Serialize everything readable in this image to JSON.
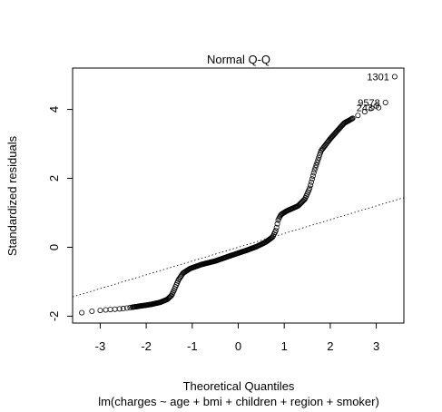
{
  "chart_data": {
    "type": "scatter",
    "title": "Normal Q-Q",
    "xlabel": "Theoretical Quantiles",
    "subtitle": "lm(charges ~ age + bmi + children + region + smoker)",
    "ylabel": "Standardized residuals",
    "xlim": [
      -3.6,
      3.6
    ],
    "ylim": [
      -2.2,
      5.2
    ],
    "xticks": [
      -3,
      -2,
      -1,
      0,
      1,
      2,
      3
    ],
    "xtick_labels": [
      "-3",
      "-2",
      "-1",
      "0",
      "1",
      "2",
      "3"
    ],
    "yticks": [
      -2,
      0,
      2,
      4
    ],
    "ytick_labels": [
      "-2",
      "0",
      "2",
      "4"
    ],
    "reference_line": {
      "intercept": 0.0,
      "slope": 0.4,
      "style": "dotted"
    },
    "points_curve": [
      [
        -3.4,
        -1.9
      ],
      [
        -3.2,
        -1.86
      ],
      [
        -3.05,
        -1.84
      ],
      [
        -2.9,
        -1.82
      ],
      [
        -2.7,
        -1.8
      ],
      [
        -2.5,
        -1.78
      ],
      [
        -2.3,
        -1.74
      ],
      [
        -2.1,
        -1.7
      ],
      [
        -1.9,
        -1.66
      ],
      [
        -1.7,
        -1.6
      ],
      [
        -1.55,
        -1.52
      ],
      [
        -1.45,
        -1.4
      ],
      [
        -1.38,
        -1.2
      ],
      [
        -1.3,
        -0.95
      ],
      [
        -1.2,
        -0.75
      ],
      [
        -1.05,
        -0.62
      ],
      [
        -0.8,
        -0.5
      ],
      [
        -0.5,
        -0.4
      ],
      [
        -0.2,
        -0.26
      ],
      [
        0.0,
        -0.17
      ],
      [
        0.2,
        -0.08
      ],
      [
        0.4,
        0.02
      ],
      [
        0.6,
        0.15
      ],
      [
        0.75,
        0.3
      ],
      [
        0.82,
        0.5
      ],
      [
        0.87,
        0.8
      ],
      [
        0.93,
        0.95
      ],
      [
        1.05,
        1.05
      ],
      [
        1.3,
        1.2
      ],
      [
        1.45,
        1.4
      ],
      [
        1.55,
        1.7
      ],
      [
        1.65,
        2.2
      ],
      [
        1.8,
        2.8
      ],
      [
        2.0,
        3.15
      ],
      [
        2.3,
        3.6
      ],
      [
        2.7,
        3.9
      ],
      [
        3.0,
        4.1
      ]
    ],
    "sparse_low": [
      -3.4,
      -3.18,
      -3.0,
      -2.88,
      -2.78,
      -2.68,
      -2.58,
      -2.5,
      -2.42,
      -2.35
    ],
    "sparse_high": [
      2.6,
      2.75,
      2.9,
      3.0
    ],
    "labeled_points": [
      {
        "label": "1301",
        "x": 3.4,
        "y": 4.95
      },
      {
        "label": "9578",
        "x": 3.2,
        "y": 4.2
      },
      {
        "label": "243",
        "x": 3.05,
        "y": 4.05
      }
    ]
  }
}
